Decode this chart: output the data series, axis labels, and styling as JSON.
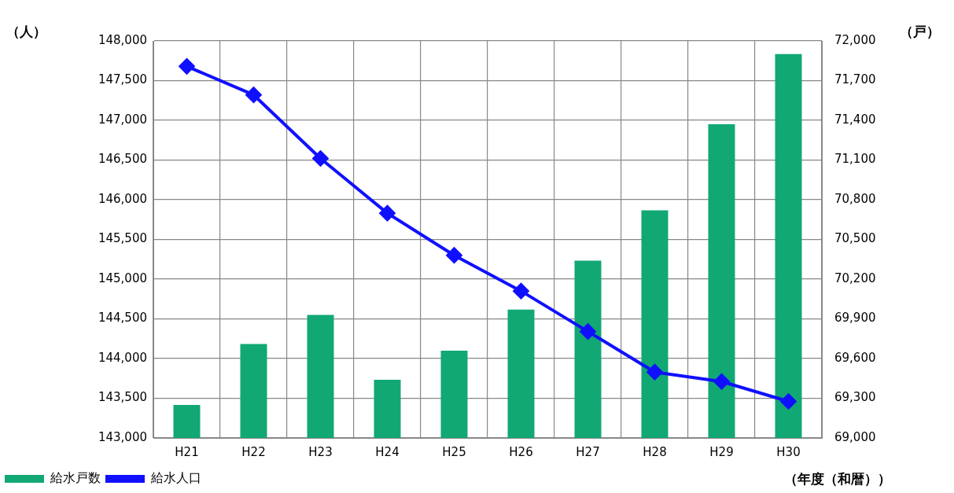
{
  "chart_data": {
    "type": "bar",
    "ylabel": "（人）",
    "y2label": "（戸）",
    "xlabel": "（年度（和暦））",
    "categories": [
      "H21",
      "H22",
      "H23",
      "H24",
      "H25",
      "H26",
      "H27",
      "H28",
      "H29",
      "H30"
    ],
    "series": [
      {
        "name": "給水戸数",
        "axis": "y2",
        "color": "#12a874",
        "values": [
          69250,
          69710,
          69930,
          69440,
          69660,
          69970,
          70340,
          70720,
          71370,
          71900
        ]
      },
      {
        "name": "給水人口",
        "type": "line",
        "axis": "y",
        "color": "#1010ff",
        "marker": "diamond",
        "values": [
          147680,
          147320,
          146520,
          145830,
          145300,
          144850,
          144340,
          143830,
          143710,
          143460
        ]
      }
    ],
    "ylim": [
      143000,
      148000
    ],
    "yticks": [
      {
        "value": 143000,
        "label": "143,000"
      },
      {
        "value": 143500,
        "label": "143,500"
      },
      {
        "value": 144000,
        "label": "144,000"
      },
      {
        "value": 144500,
        "label": "144,500"
      },
      {
        "value": 145000,
        "label": "145,000"
      },
      {
        "value": 145500,
        "label": "145,500"
      },
      {
        "value": 146000,
        "label": "146,000"
      },
      {
        "value": 146500,
        "label": "146,500"
      },
      {
        "value": 147000,
        "label": "147,000"
      },
      {
        "value": 147500,
        "label": "147,500"
      },
      {
        "value": 148000,
        "label": "148,000"
      }
    ],
    "y2lim": [
      69000,
      72000
    ],
    "y2ticks": [
      {
        "value": 69000,
        "label": "69,000"
      },
      {
        "value": 69300,
        "label": "69,300"
      },
      {
        "value": 69600,
        "label": "69,600"
      },
      {
        "value": 69900,
        "label": "69,900"
      },
      {
        "value": 70200,
        "label": "70,200"
      },
      {
        "value": 70500,
        "label": "70,500"
      },
      {
        "value": 70800,
        "label": "70,800"
      },
      {
        "value": 71100,
        "label": "71,100"
      },
      {
        "value": 71400,
        "label": "71,400"
      },
      {
        "value": 71700,
        "label": "71,700"
      },
      {
        "value": 72000,
        "label": "72,000"
      }
    ],
    "grid": true,
    "legend": "bottom"
  }
}
